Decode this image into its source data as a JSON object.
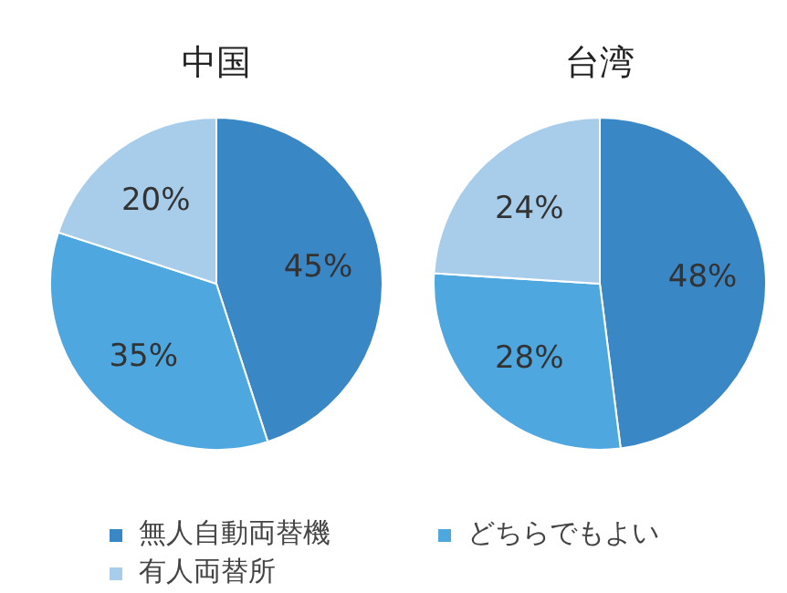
{
  "chart_data": {
    "type": "pie",
    "categories": [
      "無人自動両替機",
      "どちらでもよい",
      "有人両替所"
    ],
    "colors": [
      "#3a87c6",
      "#4ea7df",
      "#a8cdeb"
    ],
    "legend": "bottom",
    "series": [
      {
        "name": "中国",
        "values": [
          45,
          35,
          20
        ],
        "value_labels": [
          "45%",
          "35%",
          "20%"
        ]
      },
      {
        "name": "台湾",
        "values": [
          48,
          28,
          24
        ],
        "value_labels": [
          "48%",
          "28%",
          "24%"
        ]
      }
    ]
  }
}
